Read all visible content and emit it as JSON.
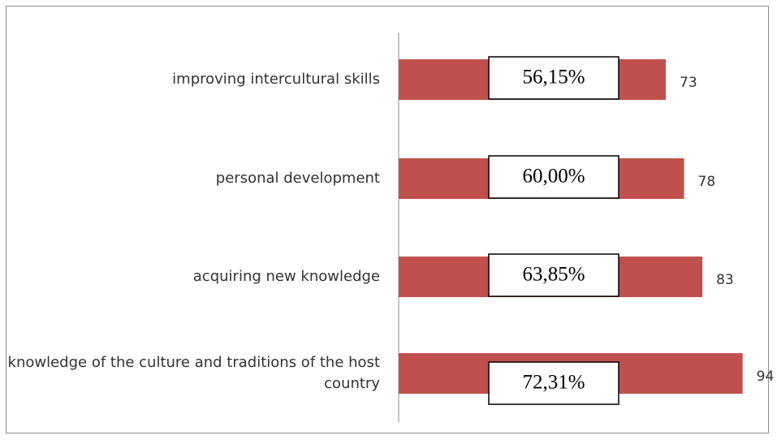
{
  "chart_data": {
    "type": "bar",
    "orientation": "horizontal",
    "categories": [
      "improving intercultural skills",
      "personal development",
      "acquiring new knowledge",
      "knowledge of the culture and traditions of the host country"
    ],
    "values": [
      73,
      78,
      83,
      94
    ],
    "annotations": [
      "56,15%",
      "60,00%",
      "63,85%",
      "72,31%"
    ],
    "color": "#c0504d"
  }
}
